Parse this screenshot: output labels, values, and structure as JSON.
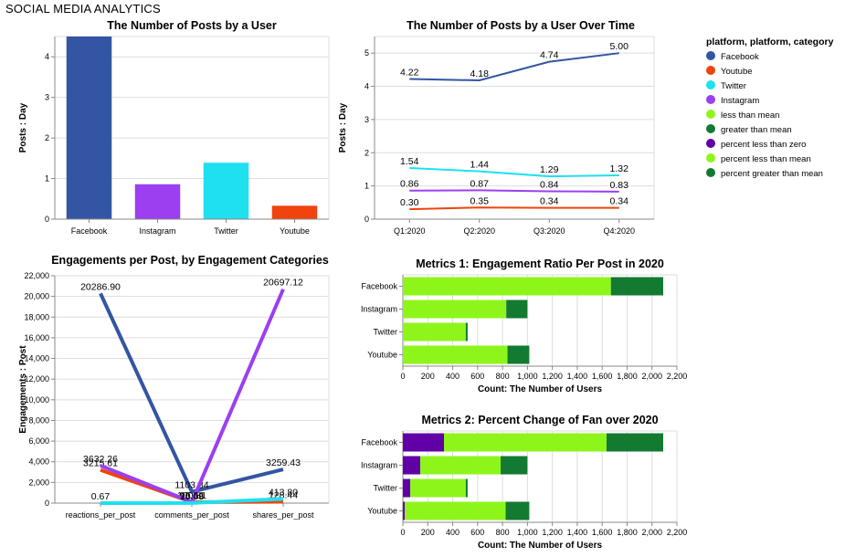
{
  "dashboard_title": "SOCIAL MEDIA ANALYTICS",
  "colors": {
    "facebook": "#3355a3",
    "youtube": "#f0430d",
    "twitter": "#1ee0ef",
    "instagram": "#9b3ff0",
    "less_than_mean": "#8ef51b",
    "greater_than_mean": "#137a31",
    "percent_less_than_zero": "#6200a8",
    "percent_less_than_mean": "#8ef51b",
    "percent_greater_than_mean": "#137a31",
    "axis": "#888888",
    "grid": "#dddddd"
  },
  "legend": {
    "title": "platform, platform, category",
    "items": [
      {
        "label": "Facebook",
        "color": "#3355a3"
      },
      {
        "label": "Youtube",
        "color": "#f0430d"
      },
      {
        "label": "Twitter",
        "color": "#1ee0ef"
      },
      {
        "label": "Instagram",
        "color": "#9b3ff0"
      },
      {
        "label": "less than mean",
        "color": "#8ef51b"
      },
      {
        "label": "greater than mean",
        "color": "#137a31"
      },
      {
        "label": "percent less than zero",
        "color": "#6200a8"
      },
      {
        "label": "percent less than mean",
        "color": "#8ef51b"
      },
      {
        "label": "percent greater than mean",
        "color": "#137a31"
      }
    ]
  },
  "chart_data": [
    {
      "id": "posts_by_user",
      "type": "bar",
      "title": "The Number of Posts by a User",
      "xlabel": "",
      "ylabel": "Posts : Day",
      "categories": [
        "Facebook",
        "Instagram",
        "Twitter",
        "Youtube"
      ],
      "values": [
        4.5,
        0.86,
        1.39,
        0.33
      ],
      "colors": [
        "#3355a3",
        "#9b3ff0",
        "#1ee0ef",
        "#f0430d"
      ],
      "ylim": [
        0,
        4.5
      ],
      "yticks": [
        0,
        1,
        2,
        3,
        4
      ],
      "grid": true
    },
    {
      "id": "posts_over_time",
      "type": "line",
      "title": "The Number of Posts by a User Over Time",
      "xlabel": "",
      "ylabel": "Posts : Day",
      "categories": [
        "Q1:2020",
        "Q2:2020",
        "Q3:2020",
        "Q4:2020"
      ],
      "ylim": [
        0,
        5.5
      ],
      "yticks": [
        0,
        1,
        2,
        3,
        4,
        5
      ],
      "grid": true,
      "series": [
        {
          "color": "#3355a3",
          "values": [
            4.22,
            4.18,
            4.74,
            5.0
          ],
          "labels": [
            "4.22",
            "4.18",
            "4.74",
            "5.00"
          ]
        },
        {
          "color": "#1ee0ef",
          "values": [
            1.54,
            1.44,
            1.29,
            1.32
          ],
          "labels": [
            "1.54",
            "1.44",
            "1.29",
            "1.32"
          ]
        },
        {
          "color": "#9b3ff0",
          "values": [
            0.86,
            0.87,
            0.84,
            0.83
          ],
          "labels": [
            "0.86",
            "0.87",
            "0.84",
            "0.83"
          ]
        },
        {
          "color": "#f0430d",
          "values": [
            0.3,
            0.35,
            0.34,
            0.34
          ],
          "labels": [
            "0.30",
            "0.35",
            "0.34",
            "0.34"
          ]
        }
      ]
    },
    {
      "id": "engagements_per_post",
      "type": "line",
      "title": "Engagements per Post, by Engagement Categories",
      "xlabel": "",
      "ylabel": "Engagements : Post",
      "categories": [
        "reactions_per_post",
        "comments_per_post",
        "shares_per_post"
      ],
      "ylim": [
        0,
        22000
      ],
      "yticks": [
        0,
        2000,
        4000,
        6000,
        8000,
        10000,
        12000,
        14000,
        16000,
        18000,
        20000,
        22000
      ],
      "ytick_labels": [
        "0",
        "2,000",
        "4,000",
        "6,000",
        "8,000",
        "10,000",
        "12,000",
        "14,000",
        "16,000",
        "18,000",
        "20,000",
        "22,000"
      ],
      "grid": true,
      "series": [
        {
          "color": "#3355a3",
          "values": [
            20286.9,
            1103.34,
            3259.43
          ],
          "labels": [
            "20286.90",
            "1103.34",
            "3259.43"
          ]
        },
        {
          "color": "#f0430d",
          "values": [
            3215.61,
            100.81,
            128.44
          ],
          "labels": [
            "3215.61",
            "100.81",
            "128.44"
          ]
        },
        {
          "color": "#9b3ff0",
          "values": [
            3632.26,
            95.66,
            20697.12
          ],
          "labels": [
            "3632.26",
            "95.66",
            "20697.12"
          ]
        },
        {
          "color": "#1ee0ef",
          "values": [
            0.67,
            10.03,
            413.8
          ],
          "labels": [
            "0.67",
            "10.03",
            "413.80"
          ]
        }
      ]
    },
    {
      "id": "metrics_1",
      "type": "bar",
      "orientation": "horizontal",
      "stacked": true,
      "title": "Metrics 1: Engagement Ratio Per Post in 2020",
      "xlabel": "Count: The Number of Users",
      "ylabel": "",
      "categories": [
        "Facebook",
        "Instagram",
        "Twitter",
        "Youtube"
      ],
      "xlim": [
        0,
        2200
      ],
      "xticks": [
        0,
        200,
        400,
        600,
        800,
        1000,
        1200,
        1400,
        1600,
        1800,
        2000,
        2200
      ],
      "xtick_labels": [
        "0",
        "200",
        "400",
        "600",
        "800",
        "1,000",
        "1,200",
        "1,400",
        "1,600",
        "1,800",
        "2,000",
        "2,200"
      ],
      "series": [
        {
          "name": "less than mean",
          "color": "#8ef51b",
          "values": [
            1670,
            830,
            505,
            840
          ]
        },
        {
          "name": "greater than mean",
          "color": "#137a31",
          "values": [
            420,
            170,
            15,
            175
          ]
        }
      ]
    },
    {
      "id": "metrics_2",
      "type": "bar",
      "orientation": "horizontal",
      "stacked": true,
      "title": "Metrics 2: Percent Change of Fan over 2020",
      "xlabel": "Count: The Number of Users",
      "ylabel": "",
      "categories": [
        "Facebook",
        "Instagram",
        "Twitter",
        "Youtube"
      ],
      "xlim": [
        0,
        2200
      ],
      "xticks": [
        0,
        200,
        400,
        600,
        800,
        1000,
        1200,
        1400,
        1600,
        1800,
        2000,
        2200
      ],
      "xtick_labels": [
        "0",
        "200",
        "400",
        "600",
        "800",
        "1,000",
        "1,200",
        "1,400",
        "1,600",
        "1,800",
        "2,000",
        "2,200"
      ],
      "series": [
        {
          "name": "percent less than zero",
          "color": "#6200a8",
          "values": [
            330,
            140,
            60,
            15
          ]
        },
        {
          "name": "percent less than mean",
          "color": "#8ef51b",
          "values": [
            1305,
            645,
            445,
            810
          ]
        },
        {
          "name": "percent greater than mean",
          "color": "#137a31",
          "values": [
            455,
            215,
            15,
            190
          ]
        }
      ]
    }
  ]
}
